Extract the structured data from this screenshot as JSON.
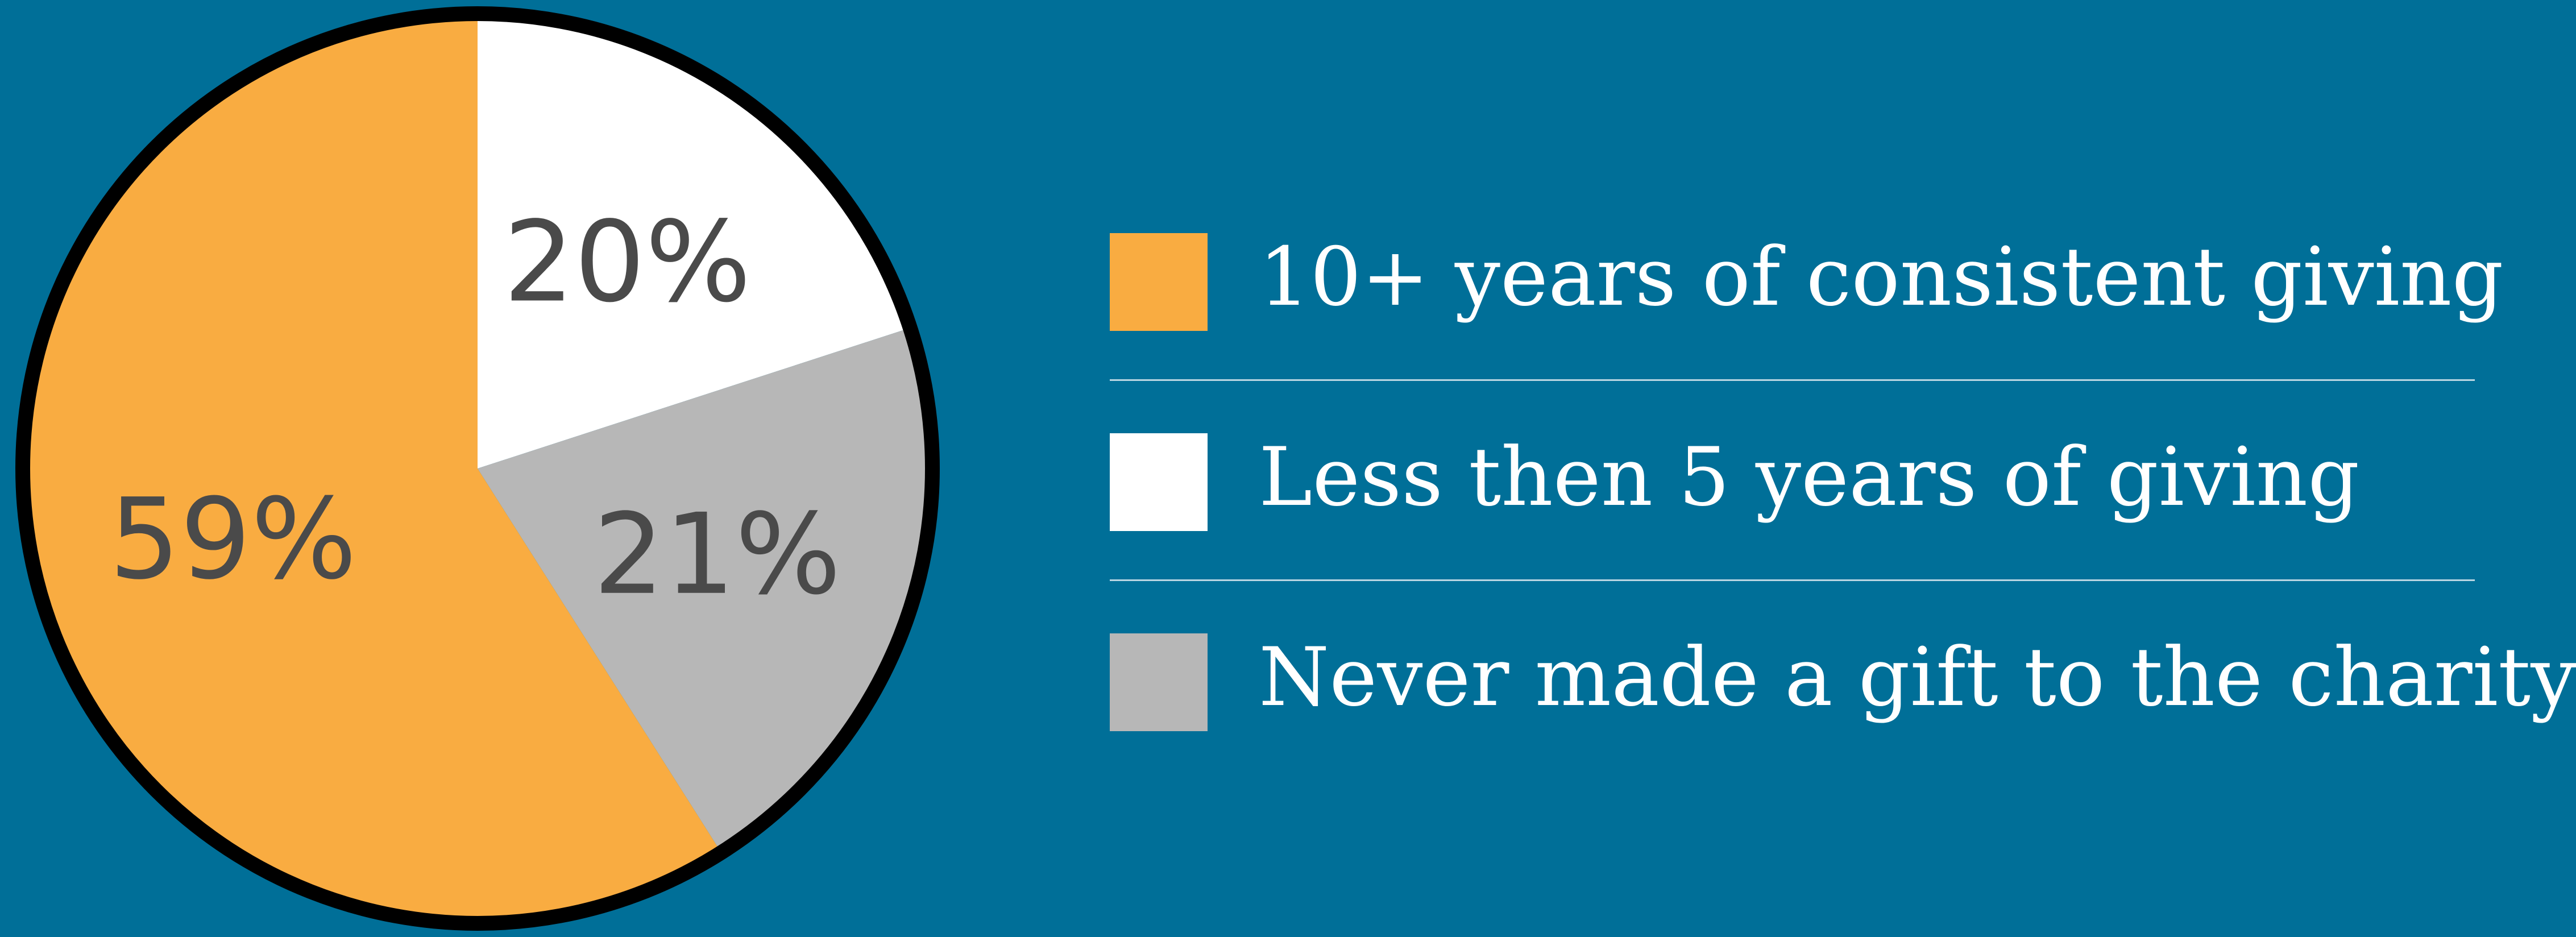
{
  "chart_data": {
    "type": "pie",
    "title": "",
    "slices": [
      {
        "label": "10+ years of consistent giving",
        "value": 59,
        "display": "59%",
        "color": "#f9ac41"
      },
      {
        "label": "Less then 5 years of giving",
        "value": 20,
        "display": "20%",
        "color": "#ffffff"
      },
      {
        "label": "Never made a gift to the charity",
        "value": 21,
        "display": "21%",
        "color": "#b7b7b7"
      }
    ],
    "legend": {
      "placement": "right",
      "entries": [
        "10+ years of consistent giving",
        "Less then 5 years of giving",
        "Never made a gift to the charity"
      ]
    }
  },
  "colors": {
    "background": "#006f98",
    "outline": "#000000",
    "label_text": "#4a4a4a",
    "legend_text": "#ffffff"
  }
}
